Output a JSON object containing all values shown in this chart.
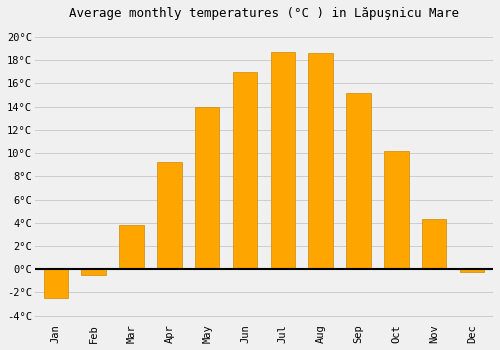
{
  "months": [
    "Jan",
    "Feb",
    "Mar",
    "Apr",
    "May",
    "Jun",
    "Jul",
    "Aug",
    "Sep",
    "Oct",
    "Nov",
    "Dec"
  ],
  "values": [
    -2.5,
    -0.5,
    3.8,
    9.2,
    14.0,
    17.0,
    18.7,
    18.6,
    15.2,
    10.2,
    4.3,
    -0.2
  ],
  "bar_color": "#FFA500",
  "bar_edge_color": "#CC8800",
  "title": "Average monthly temperatures (°C ) in Lăpuşnicu Mare",
  "ylim": [
    -4.5,
    21
  ],
  "yticks": [
    -4,
    -2,
    0,
    2,
    4,
    6,
    8,
    10,
    12,
    14,
    16,
    18,
    20
  ],
  "ytick_labels": [
    "-4°C",
    "-2°C",
    "0°C",
    "2°C",
    "4°C",
    "6°C",
    "8°C",
    "10°C",
    "12°C",
    "14°C",
    "16°C",
    "18°C",
    "20°C"
  ],
  "grid_color": "#cccccc",
  "background_color": "#f0f0f0",
  "zero_line_color": "#000000",
  "title_fontsize": 9,
  "tick_fontsize": 7.5,
  "bar_width": 0.65
}
